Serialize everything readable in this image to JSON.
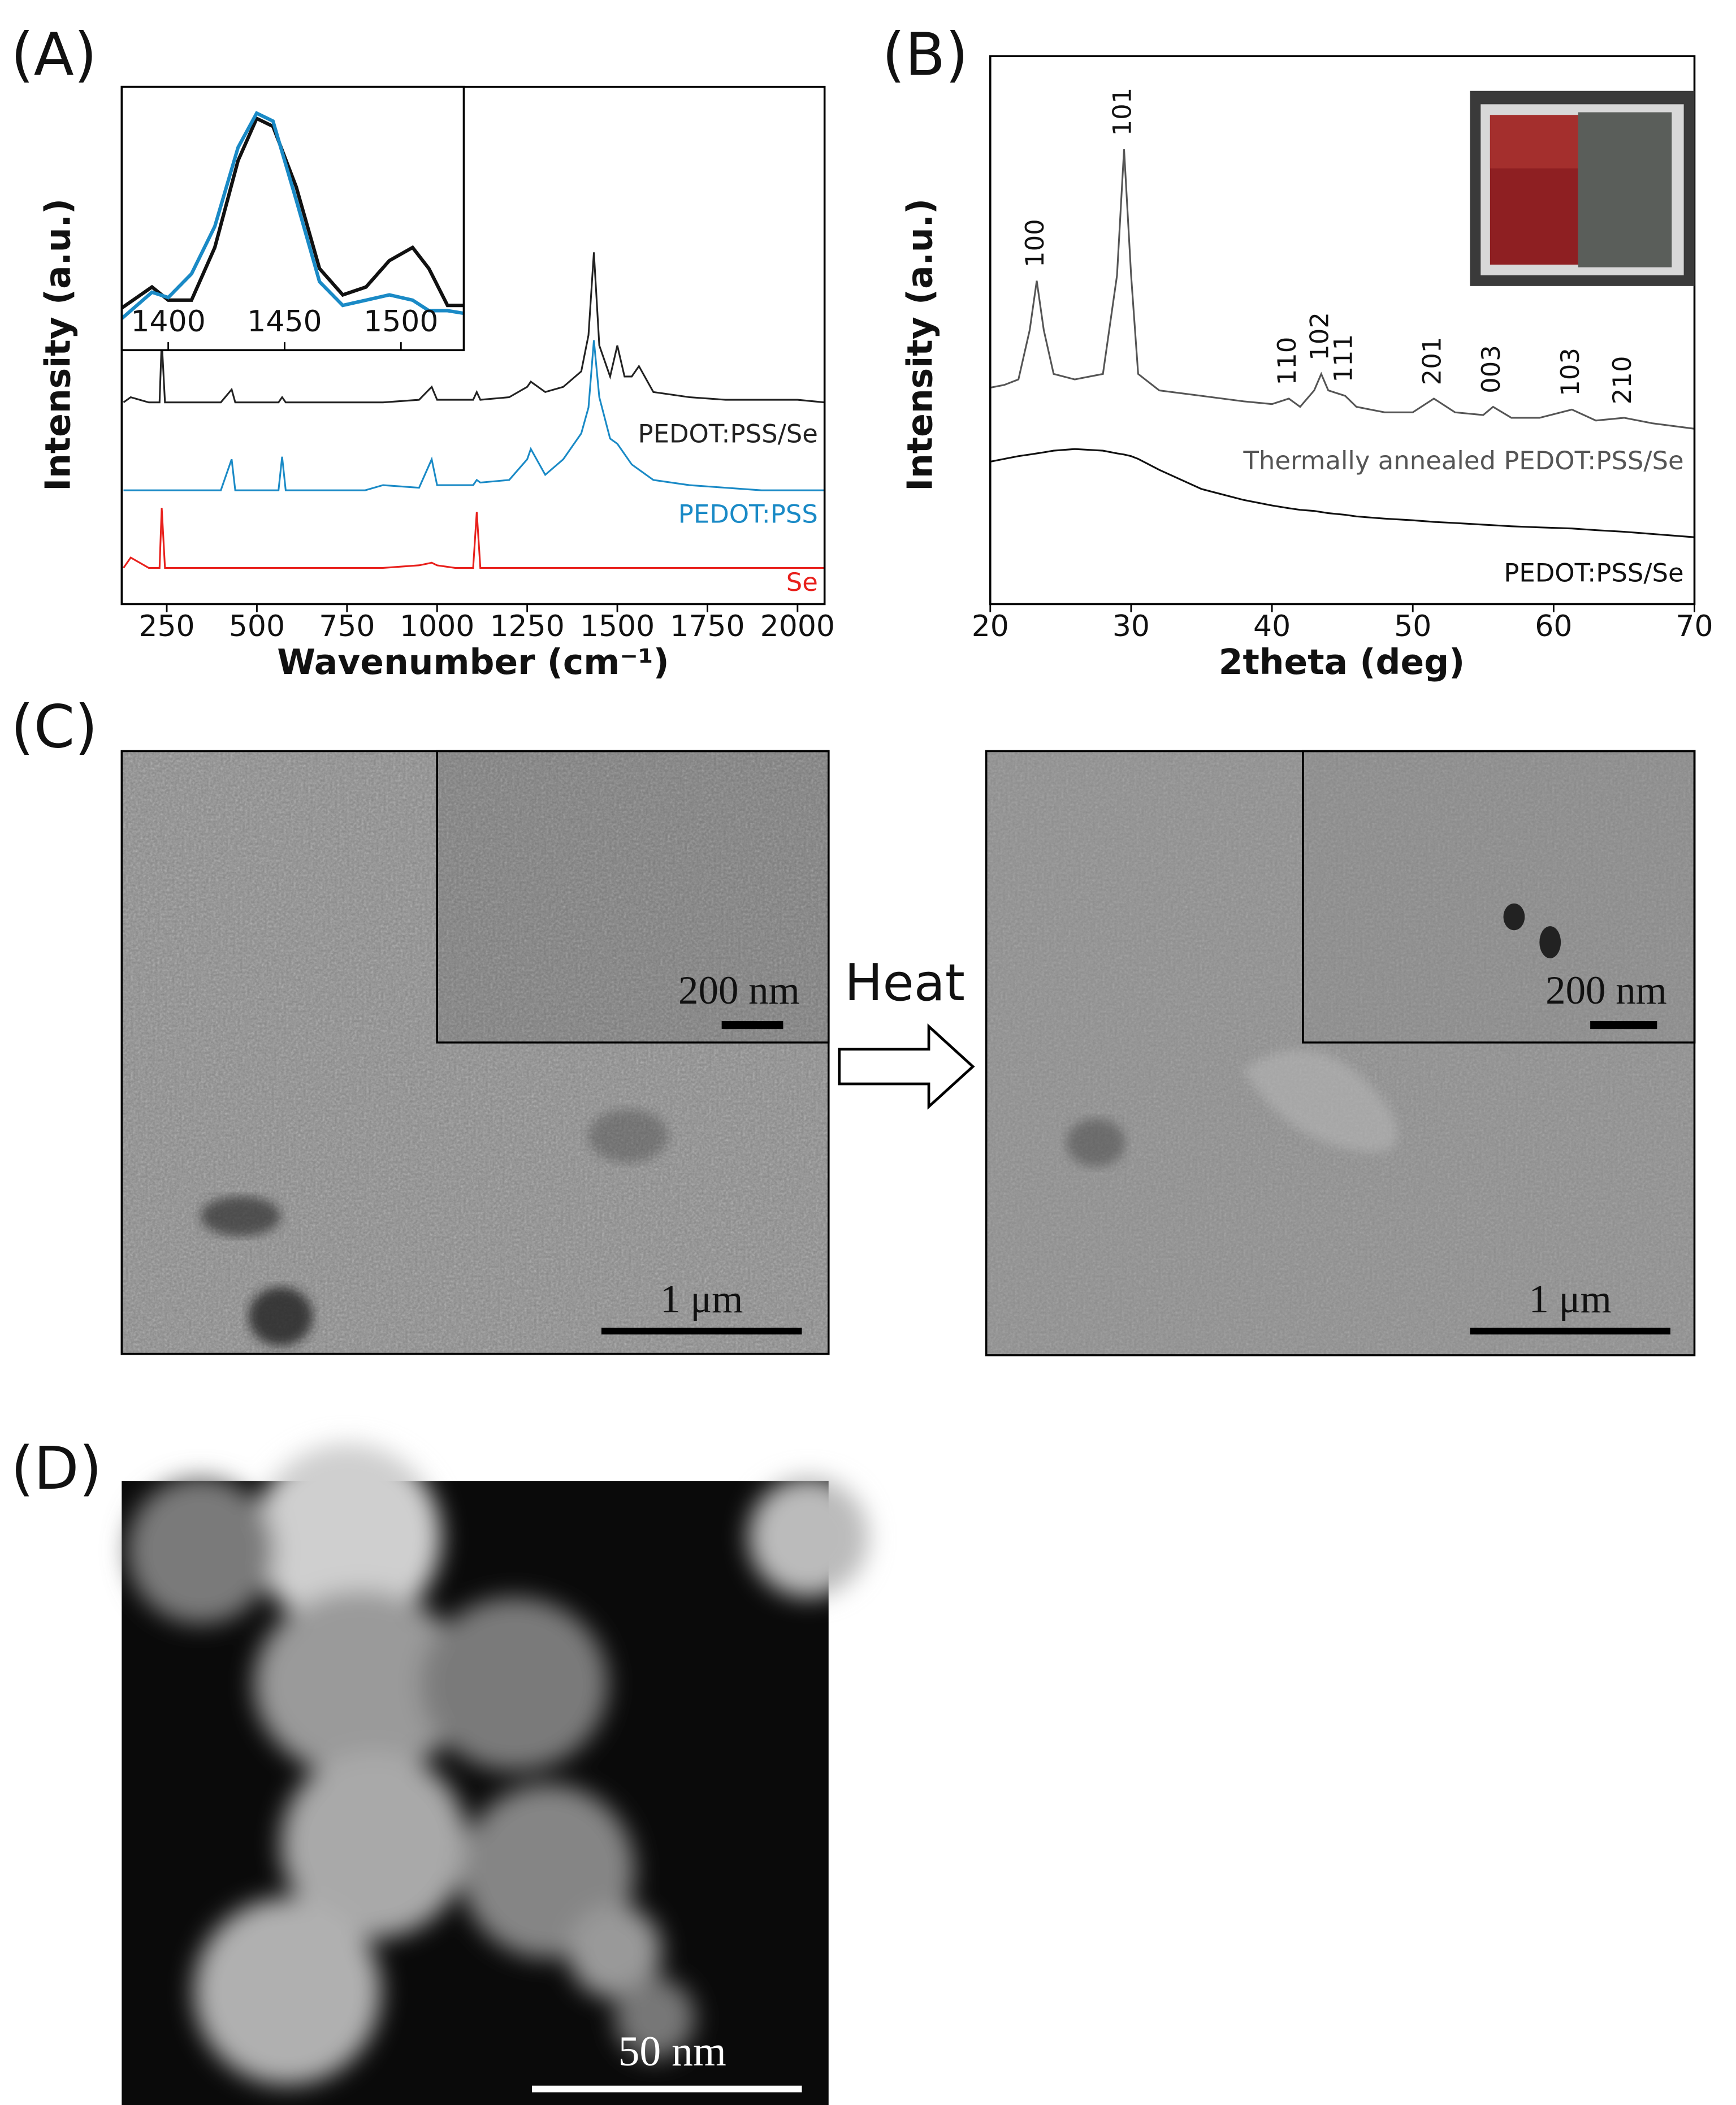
{
  "chart_data": [
    {
      "type": "line",
      "x_label": "Wavenumber (cm⁻¹)",
      "y_label": "Intensity (a.u.)",
      "x": [
        130,
        150,
        200,
        230,
        236,
        245,
        300,
        400,
        430,
        440,
        500,
        560,
        570,
        580,
        700,
        800,
        850,
        950,
        985,
        1000,
        1050,
        1100,
        1110,
        1120,
        1200,
        1250,
        1260,
        1300,
        1350,
        1400,
        1420,
        1435,
        1450,
        1480,
        1500,
        1520,
        1540,
        1560,
        1600,
        1700,
        1800,
        1900,
        2000,
        2075
      ],
      "series": [
        {
          "name": "PEDOT:PSS/Se",
          "color": "#222222",
          "values": [
            39,
            40,
            39,
            39,
            51,
            39,
            39,
            39,
            41.5,
            39,
            39,
            39,
            40,
            39,
            39,
            39,
            39,
            39.5,
            42,
            39.5,
            39.5,
            39.5,
            41,
            39.5,
            40,
            42,
            43,
            41,
            42,
            45,
            52,
            68,
            50,
            44,
            50,
            44,
            44,
            46,
            41,
            40,
            39.5,
            39.5,
            39.5,
            39
          ]
        },
        {
          "name": "PEDOT:PSS",
          "color": "#1a8ac6",
          "values": [
            22,
            22,
            22,
            22,
            22,
            22,
            22,
            22,
            28,
            22,
            22,
            22,
            28.5,
            22,
            22,
            22,
            23,
            22.5,
            28,
            23,
            23,
            23,
            24,
            23.5,
            24,
            28,
            30,
            25,
            28,
            33,
            38,
            51,
            40,
            32,
            31,
            29,
            27,
            26,
            24,
            23,
            22.5,
            22,
            22,
            22
          ]
        },
        {
          "name": "Se",
          "color": "#e8201c",
          "values": [
            7,
            9,
            7,
            7,
            18.6,
            7,
            7,
            7,
            7,
            7,
            7,
            7,
            7,
            7,
            7,
            7,
            7,
            7.5,
            8,
            7.5,
            7,
            7,
            17.8,
            7,
            7,
            7,
            7,
            7,
            7,
            7,
            7,
            7,
            7,
            7,
            7,
            7,
            7,
            7,
            7,
            7,
            7,
            7,
            7,
            7
          ]
        }
      ],
      "xlim": [
        125,
        2075
      ],
      "xticks": [
        250,
        500,
        750,
        1000,
        1250,
        1500,
        1750,
        2000
      ],
      "ylim": [
        0,
        100
      ]
    },
    {
      "type": "line",
      "x": [
        1380,
        1393,
        1400,
        1410,
        1420,
        1430,
        1438,
        1445,
        1455,
        1465,
        1475,
        1485,
        1495,
        1505,
        1512,
        1520,
        1527
      ],
      "series": [
        {
          "color": "#111111",
          "values": [
            16,
            24,
            19,
            19,
            39,
            72,
            88,
            85,
            62,
            31,
            21,
            24,
            34,
            39,
            31,
            17,
            17
          ]
        },
        {
          "color": "#1a8ac6",
          "values": [
            12,
            22,
            20,
            29,
            47,
            77,
            90,
            87,
            57,
            26,
            17,
            19,
            21,
            19,
            15,
            15,
            14
          ]
        }
      ],
      "xlim": [
        1380,
        1527
      ],
      "xticks": [
        1400,
        1450,
        1500
      ],
      "ylim": [
        0,
        100
      ]
    },
    {
      "type": "line",
      "x_label": "2theta (deg)",
      "y_label": "Intensity (a.u.)",
      "x": [
        20,
        21,
        22,
        22.8,
        23.3,
        23.8,
        24.5,
        26,
        28,
        29,
        29.5,
        30,
        30.5,
        32,
        35,
        38,
        40,
        41.2,
        42,
        43,
        43.5,
        44,
        45.2,
        46,
        48,
        50,
        51.5,
        53,
        55,
        55.7,
        57,
        59,
        61.3,
        63,
        65,
        67,
        70
      ],
      "series": [
        {
          "name": "Thermally annealed PEDOT:PSS/Se",
          "color": "#555555",
          "values": [
            39.5,
            40,
            41,
            50,
            59,
            50,
            42,
            41,
            42,
            60,
            83,
            60,
            42,
            39,
            38,
            37,
            36.5,
            37.5,
            36,
            39,
            42,
            39,
            38,
            36,
            35,
            35,
            37.5,
            35,
            34.5,
            36,
            34,
            34,
            35.5,
            33.5,
            34,
            33,
            32
          ]
        },
        {
          "name": "PEDOT:PSS/Se",
          "color": "#111111",
          "values": [
            26,
            26.5,
            27,
            27.3,
            27.5,
            27.7,
            28,
            28.3,
            28,
            27.5,
            27.3,
            27,
            26.5,
            24.5,
            21,
            19,
            18,
            17.5,
            17.2,
            17,
            16.8,
            16.6,
            16.3,
            16,
            15.6,
            15.3,
            15,
            14.8,
            14.5,
            14.4,
            14.2,
            14,
            13.8,
            13.5,
            13.2,
            12.8,
            12.2
          ]
        }
      ],
      "annotations": [
        {
          "text": "100",
          "x": 23.3
        },
        {
          "text": "101",
          "x": 29.5
        },
        {
          "text": "110",
          "x": 41.2
        },
        {
          "text": "102",
          "x": 43.5
        },
        {
          "text": "111",
          "x": 45.2
        },
        {
          "text": "201",
          "x": 51.5
        },
        {
          "text": "003",
          "x": 55.7
        },
        {
          "text": "103",
          "x": 61.3
        },
        {
          "text": "210",
          "x": 65
        }
      ],
      "xlim": [
        20,
        70
      ],
      "xticks": [
        20,
        30,
        40,
        50,
        60,
        70
      ],
      "ylim": [
        0,
        100
      ]
    }
  ],
  "figure": {
    "panel_labels": [
      "(A)",
      "(B)",
      "(C)",
      "(D)"
    ],
    "sem_before": {
      "inset_scale_bar": "200 nm",
      "scale_bar": "1 μm"
    },
    "process_label": "Heat",
    "sem_after": {
      "inset_scale_bar": "200 nm",
      "scale_bar": "1 μm"
    },
    "tem": {
      "scale_bar": "50 nm"
    }
  }
}
